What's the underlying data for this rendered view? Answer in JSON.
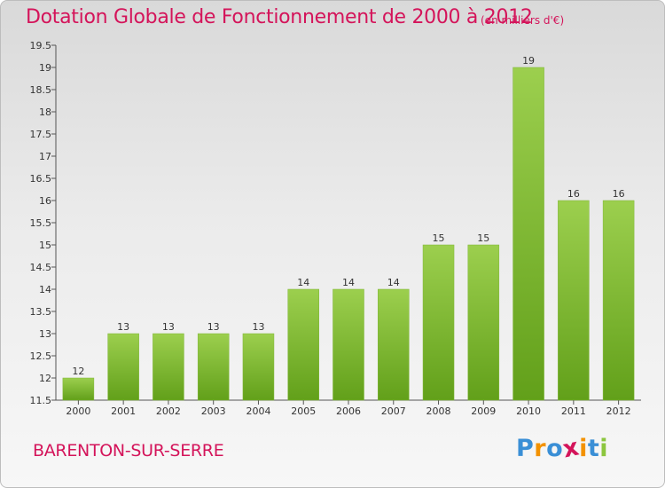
{
  "header": {
    "title": "Dotation Globale de Fonctionnement de 2000 à 2012",
    "subtitle": "(en milliers d'€)"
  },
  "footer": {
    "commune": "BARENTON-SUR-SERRE",
    "logo": {
      "letters": [
        "P",
        "r",
        "o",
        "x",
        "i",
        "t",
        "i"
      ],
      "colors": [
        "#3a8fd6",
        "#f39200",
        "#3a8fd6",
        "#d4145a",
        "#f39200",
        "#3a8fd6",
        "#8cc63f"
      ]
    }
  },
  "chart_data": {
    "type": "bar",
    "categories": [
      "2000",
      "2001",
      "2002",
      "2003",
      "2004",
      "2005",
      "2006",
      "2007",
      "2008",
      "2009",
      "2010",
      "2011",
      "2012"
    ],
    "values": [
      12,
      13,
      13,
      13,
      13,
      14,
      14,
      14,
      15,
      15,
      19,
      16,
      16
    ],
    "data_labels": [
      "12",
      "13",
      "13",
      "13",
      "13",
      "14",
      "14",
      "14",
      "15",
      "15",
      "19",
      "16",
      "16"
    ],
    "ylim": [
      11.5,
      19.5
    ],
    "yticks": [
      "11.5",
      "12",
      "12.5",
      "13",
      "13.5",
      "14",
      "14.5",
      "15",
      "15.5",
      "16",
      "16.5",
      "17",
      "17.5",
      "18",
      "18.5",
      "19",
      "19.5"
    ],
    "grid": false,
    "bar_color_top": "#9ccf4e",
    "bar_color_bottom": "#62a01a",
    "axis_color": "#555555",
    "label_color": "#333333"
  }
}
